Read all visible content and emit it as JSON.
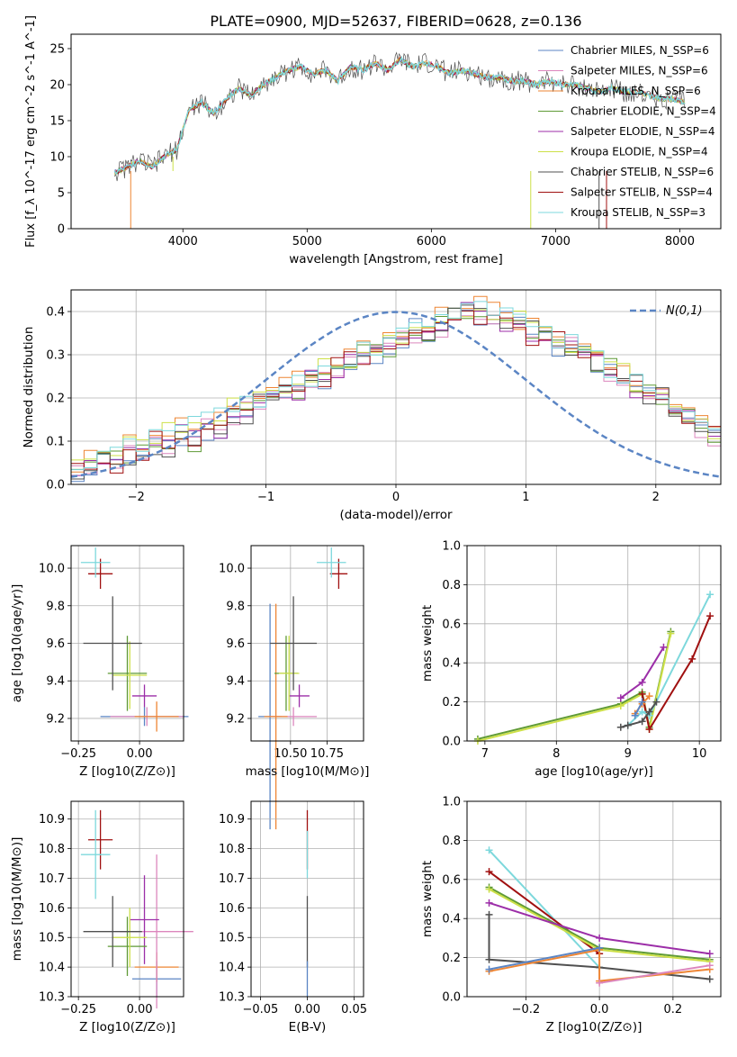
{
  "chart_data": [
    {
      "type": "line",
      "panel": "spectrum",
      "title": "PLATE=0900, MJD=52637, FIBERID=0628, z=0.136",
      "xlabel": "wavelength [Angstrom, rest frame]",
      "ylabel": "Flux [f_λ 10^-17 erg cm^-2 s^-1 A^-1]",
      "xlim": [
        3100,
        8330
      ],
      "ylim": [
        0,
        27
      ],
      "xticks": [
        4000,
        5000,
        6000,
        7000,
        8000
      ],
      "yticks": [
        0,
        5,
        10,
        15,
        20,
        25
      ],
      "grid": false,
      "legend_position": "top-right",
      "x": [
        3450,
        3550,
        3650,
        3750,
        3850,
        3950,
        4050,
        4150,
        4250,
        4350,
        4450,
        4550,
        4650,
        4750,
        4850,
        4950,
        5050,
        5150,
        5250,
        5350,
        5450,
        5550,
        5650,
        5750,
        5850,
        5950,
        6050,
        6150,
        6250,
        6350,
        6450,
        6550,
        6650,
        6750,
        6850,
        6950,
        7050,
        7150,
        7250,
        7350,
        7450,
        7550,
        7650,
        7750,
        7850,
        7950,
        8050
      ],
      "series": [
        {
          "name": "Chabrier MILES, N_SSP=6",
          "color": "#5b85c4"
        },
        {
          "name": "Salpeter MILES, N_SSP=6",
          "color": "#dc86bd"
        },
        {
          "name": "Kroupa MILES, N_SSP=6",
          "color": "#ee8533"
        },
        {
          "name": "Chabrier ELODIE, N_SSP=4",
          "color": "#5f9a36"
        },
        {
          "name": "Salpeter ELODIE, N_SSP=4",
          "color": "#9c2ea8"
        },
        {
          "name": "Kroupa ELODIE, N_SSP=4",
          "color": "#cde048"
        },
        {
          "name": "Chabrier STELIB, N_SSP=6",
          "color": "#505050"
        },
        {
          "name": "Salpeter STELIB, N_SSP=4",
          "color": "#a01010"
        },
        {
          "name": "Kroupa STELIB, N_SSP=3",
          "color": "#7dd8dc",
          "values": [
            7.8,
            8.5,
            9.5,
            8.6,
            10.0,
            11.0,
            16.5,
            17.5,
            16.0,
            18.0,
            19.5,
            18.5,
            20.0,
            21.0,
            22.0,
            22.5,
            21.5,
            22.0,
            20.5,
            22.5,
            22.0,
            23.0,
            22.0,
            23.5,
            22.5,
            23.0,
            22.5,
            21.5,
            22.0,
            21.5,
            21.0,
            21.0,
            20.5,
            20.5,
            20.0,
            20.5,
            20.0,
            20.0,
            19.5,
            19.0,
            19.5,
            19.0,
            19.0,
            18.5,
            18.0,
            18.0,
            17.5
          ]
        }
      ]
    },
    {
      "type": "histogram",
      "panel": "residuals",
      "xlabel": "(data-model)/error",
      "ylabel": "Normed distribution",
      "xlim": [
        -2.5,
        2.5
      ],
      "ylim": [
        0,
        0.45
      ],
      "xticks": [
        -2,
        -1,
        0,
        1,
        2
      ],
      "yticks": [
        0.0,
        0.1,
        0.2,
        0.3,
        0.4
      ],
      "grid": true,
      "legend_position": "top-right",
      "reference_label": "N(0,1)",
      "reference_color": "#5b85c4",
      "bin_edges_start": -2.5,
      "bin_width": 0.1,
      "series_values": [
        [
          0.02,
          0.04,
          0.05,
          0.06,
          0.06,
          0.07,
          0.09,
          0.08,
          0.11,
          0.1,
          0.12,
          0.12,
          0.15,
          0.16,
          0.19,
          0.19,
          0.21,
          0.22,
          0.24,
          0.24,
          0.26,
          0.28,
          0.31,
          0.3,
          0.32,
          0.33,
          0.36,
          0.35,
          0.38,
          0.39,
          0.4,
          0.39,
          0.39,
          0.38,
          0.37,
          0.36,
          0.35,
          0.32,
          0.31,
          0.3,
          0.28,
          0.27,
          0.24,
          0.23,
          0.21,
          0.2,
          0.17,
          0.16,
          0.14,
          0.12
        ],
        [
          0.03,
          0.05,
          0.06,
          0.05,
          0.08,
          0.07,
          0.1,
          0.09,
          0.12,
          0.11,
          0.14,
          0.13,
          0.16,
          0.17,
          0.18,
          0.2,
          0.22,
          0.21,
          0.24,
          0.25,
          0.27,
          0.29,
          0.3,
          0.31,
          0.33,
          0.34,
          0.35,
          0.37,
          0.36,
          0.38,
          0.41,
          0.38,
          0.37,
          0.36,
          0.38,
          0.34,
          0.33,
          0.34,
          0.32,
          0.29,
          0.3,
          0.26,
          0.25,
          0.22,
          0.2,
          0.21,
          0.18,
          0.15,
          0.13,
          0.11
        ],
        [
          0.04,
          0.06,
          0.07,
          0.07,
          0.09,
          0.1,
          0.11,
          0.12,
          0.13,
          0.14,
          0.15,
          0.16,
          0.18,
          0.18,
          0.2,
          0.21,
          0.23,
          0.24,
          0.25,
          0.27,
          0.28,
          0.29,
          0.31,
          0.32,
          0.34,
          0.35,
          0.37,
          0.38,
          0.39,
          0.4,
          0.4,
          0.41,
          0.4,
          0.39,
          0.38,
          0.37,
          0.36,
          0.34,
          0.33,
          0.31,
          0.29,
          0.27,
          0.26,
          0.24,
          0.22,
          0.2,
          0.19,
          0.17,
          0.15,
          0.13
        ]
      ]
    },
    {
      "type": "scatter",
      "panel": "age-vs-Z",
      "xlabel": "Z [log10(Z/Z⊙)]",
      "ylabel": "age [log10(age/yr)]",
      "xlim": [
        -0.28,
        0.18
      ],
      "ylim": [
        9.08,
        10.12
      ],
      "xticks": [
        -0.25,
        0.0
      ],
      "yticks": [
        9.2,
        9.4,
        9.6,
        9.8,
        10.0
      ],
      "grid": true,
      "points": [
        {
          "color": "#5b85c4",
          "x": 0.02,
          "y": 9.21,
          "xerr": 0.18,
          "yerr": 0.05
        },
        {
          "color": "#dc86bd",
          "x": 0.03,
          "y": 9.21,
          "xerr": 0.15,
          "yerr": 0.05
        },
        {
          "color": "#ee8533",
          "x": 0.07,
          "y": 9.21,
          "xerr": 0.09,
          "yerr": 0.08
        },
        {
          "color": "#9c2ea8",
          "x": 0.02,
          "y": 9.32,
          "xerr": 0.05,
          "yerr": 0.06
        },
        {
          "color": "#5f9a36",
          "x": -0.05,
          "y": 9.44,
          "xerr": 0.08,
          "yerr": 0.2
        },
        {
          "color": "#cde048",
          "x": -0.04,
          "y": 9.43,
          "xerr": 0.07,
          "yerr": 0.18
        },
        {
          "color": "#505050",
          "x": -0.11,
          "y": 9.6,
          "xerr": 0.12,
          "yerr": 0.25
        },
        {
          "color": "#a01010",
          "x": -0.16,
          "y": 9.97,
          "xerr": 0.05,
          "yerr": 0.08
        },
        {
          "color": "#7dd8dc",
          "x": -0.18,
          "y": 10.03,
          "xerr": 0.06,
          "yerr": 0.08
        }
      ]
    },
    {
      "type": "scatter",
      "panel": "age-vs-mass",
      "xlabel": "mass [log10(M/M⊙)]",
      "ylabel": "",
      "xlim": [
        10.23,
        11.0
      ],
      "ylim": [
        9.08,
        10.12
      ],
      "xticks": [
        10.5,
        10.75
      ],
      "yticks": [
        9.2,
        9.4,
        9.6,
        9.8,
        10.0
      ],
      "grid": true,
      "points": [
        {
          "color": "#5b85c4",
          "x": 10.36,
          "y": 9.21,
          "xerr": 0.08,
          "yerr": 0.6
        },
        {
          "color": "#dc86bd",
          "x": 10.52,
          "y": 9.21,
          "xerr": 0.16,
          "yerr": 0.05
        },
        {
          "color": "#ee8533",
          "x": 10.4,
          "y": 9.21,
          "xerr": 0.08,
          "yerr": 0.6
        },
        {
          "color": "#9c2ea8",
          "x": 10.56,
          "y": 9.32,
          "xerr": 0.07,
          "yerr": 0.06
        },
        {
          "color": "#5f9a36",
          "x": 10.47,
          "y": 9.44,
          "xerr": 0.08,
          "yerr": 0.2
        },
        {
          "color": "#cde048",
          "x": 10.49,
          "y": 9.44,
          "xerr": 0.07,
          "yerr": 0.2
        },
        {
          "color": "#505050",
          "x": 10.52,
          "y": 9.6,
          "xerr": 0.16,
          "yerr": 0.25
        },
        {
          "color": "#a01010",
          "x": 10.83,
          "y": 9.97,
          "xerr": 0.06,
          "yerr": 0.08
        },
        {
          "color": "#7dd8dc",
          "x": 10.78,
          "y": 10.03,
          "xerr": 0.1,
          "yerr": 0.08
        }
      ]
    },
    {
      "type": "line",
      "panel": "weight-vs-age",
      "xlabel": "age [log10(age/yr)]",
      "ylabel": "mass weight",
      "xlim": [
        6.75,
        10.3
      ],
      "ylim": [
        0,
        1.0
      ],
      "xticks": [
        7,
        8,
        9,
        10
      ],
      "yticks": [
        0.0,
        0.2,
        0.4,
        0.6,
        0.8,
        1.0
      ],
      "grid": true,
      "series": [
        {
          "color": "#5f9a36",
          "x": [
            6.9,
            8.9,
            9.2,
            9.3,
            9.6
          ],
          "y": [
            0.01,
            0.19,
            0.25,
            0.07,
            0.56
          ]
        },
        {
          "color": "#cde048",
          "x": [
            6.9,
            8.9,
            9.2,
            9.3,
            9.6
          ],
          "y": [
            0.0,
            0.18,
            0.24,
            0.06,
            0.55
          ]
        },
        {
          "color": "#9c2ea8",
          "x": [
            8.9,
            9.2,
            9.5
          ],
          "y": [
            0.22,
            0.3,
            0.48
          ]
        },
        {
          "color": "#a01010",
          "x": [
            9.2,
            9.3,
            9.9,
            10.15
          ],
          "y": [
            0.24,
            0.06,
            0.42,
            0.64
          ]
        },
        {
          "color": "#7dd8dc",
          "x": [
            9.0,
            9.2,
            9.3,
            10.15
          ],
          "y": [
            0.08,
            0.15,
            0.13,
            0.75
          ]
        },
        {
          "color": "#505050",
          "x": [
            8.9,
            9.0,
            9.2,
            9.3,
            9.4
          ],
          "y": [
            0.07,
            0.08,
            0.1,
            0.15,
            0.2
          ]
        },
        {
          "color": "#ee8533",
          "x": [
            9.1,
            9.2,
            9.3
          ],
          "y": [
            0.14,
            0.19,
            0.23
          ]
        },
        {
          "color": "#5b85c4",
          "x": [
            9.1,
            9.2
          ],
          "y": [
            0.13,
            0.2
          ]
        }
      ]
    },
    {
      "type": "scatter",
      "panel": "mass-vs-Z",
      "xlabel": "Z [log10(Z/Z⊙)]",
      "ylabel": "mass [log10(M/M⊙)]",
      "xlim": [
        -0.28,
        0.18
      ],
      "ylim": [
        10.3,
        10.96
      ],
      "xticks": [
        -0.25,
        0.0
      ],
      "yticks": [
        10.3,
        10.4,
        10.5,
        10.6,
        10.7,
        10.8,
        10.9
      ],
      "grid": true,
      "points": [
        {
          "color": "#5b85c4",
          "x": 0.07,
          "y": 10.36,
          "xerr": 0.1,
          "yerr": 0.06
        },
        {
          "color": "#ee8533",
          "x": 0.07,
          "y": 10.4,
          "xerr": 0.09,
          "yerr": 0.05
        },
        {
          "color": "#dc86bd",
          "x": 0.07,
          "y": 10.52,
          "xerr": 0.15,
          "yerr": 0.26
        },
        {
          "color": "#9c2ea8",
          "x": 0.02,
          "y": 10.56,
          "xerr": 0.06,
          "yerr": 0.15
        },
        {
          "color": "#5f9a36",
          "x": -0.05,
          "y": 10.47,
          "xerr": 0.08,
          "yerr": 0.1
        },
        {
          "color": "#cde048",
          "x": -0.04,
          "y": 10.5,
          "xerr": 0.07,
          "yerr": 0.1
        },
        {
          "color": "#505050",
          "x": -0.11,
          "y": 10.52,
          "xerr": 0.12,
          "yerr": 0.12
        },
        {
          "color": "#a01010",
          "x": -0.16,
          "y": 10.83,
          "xerr": 0.05,
          "yerr": 0.1
        },
        {
          "color": "#7dd8dc",
          "x": -0.18,
          "y": 10.78,
          "xerr": 0.06,
          "yerr": 0.15
        }
      ]
    },
    {
      "type": "scatter",
      "panel": "mass-vs-EBV",
      "xlabel": "E(B-V)",
      "ylabel": "",
      "xlim": [
        -0.06,
        0.06
      ],
      "ylim": [
        10.3,
        10.96
      ],
      "xticks": [
        -0.05,
        0.0,
        0.05
      ],
      "yticks": [
        10.3,
        10.4,
        10.5,
        10.6,
        10.7,
        10.8,
        10.9
      ],
      "grid": true,
      "points": [
        {
          "color": "#a01010",
          "x": 0.0,
          "y": 10.83,
          "yerr": 0.1
        },
        {
          "color": "#7dd8dc",
          "x": 0.0,
          "y": 10.78,
          "yerr": 0.08
        },
        {
          "color": "#505050",
          "x": 0.0,
          "y": 10.52,
          "yerr": 0.12
        },
        {
          "color": "#5b85c4",
          "x": 0.0,
          "y": 10.36,
          "yerr": 0.06
        }
      ]
    },
    {
      "type": "line",
      "panel": "weight-vs-Z",
      "xlabel": "Z [log10(Z/Z⊙)]",
      "ylabel": "mass weight",
      "xlim": [
        -0.36,
        0.33
      ],
      "ylim": [
        0,
        1.0
      ],
      "xticks": [
        -0.2,
        0.0,
        0.2
      ],
      "yticks": [
        0.0,
        0.2,
        0.4,
        0.6,
        0.8,
        1.0
      ],
      "grid": true,
      "series": [
        {
          "color": "#7dd8dc",
          "x": [
            -0.3,
            0.0
          ],
          "y": [
            0.75,
            0.15
          ]
        },
        {
          "color": "#a01010",
          "x": [
            -0.3,
            0.0
          ],
          "y": [
            0.64,
            0.22
          ]
        },
        {
          "color": "#5f9a36",
          "x": [
            -0.3,
            0.0,
            0.3
          ],
          "y": [
            0.56,
            0.25,
            0.19
          ]
        },
        {
          "color": "#cde048",
          "x": [
            -0.3,
            0.0,
            0.3
          ],
          "y": [
            0.55,
            0.24,
            0.18
          ]
        },
        {
          "color": "#9c2ea8",
          "x": [
            -0.3,
            0.0,
            0.3
          ],
          "y": [
            0.48,
            0.3,
            0.22
          ]
        },
        {
          "color": "#505050",
          "x": [
            -0.3,
            -0.3,
            0.0,
            0.3
          ],
          "y": [
            0.42,
            0.19,
            0.15,
            0.09
          ]
        },
        {
          "color": "#ee8533",
          "x": [
            -0.3,
            0.0,
            0.0,
            0.3
          ],
          "y": [
            0.13,
            0.24,
            0.08,
            0.14
          ]
        },
        {
          "color": "#5b85c4",
          "x": [
            -0.3,
            0.0
          ],
          "y": [
            0.14,
            0.25
          ]
        },
        {
          "color": "#dc86bd",
          "x": [
            0.0,
            0.3
          ],
          "y": [
            0.07,
            0.16
          ]
        }
      ]
    }
  ]
}
